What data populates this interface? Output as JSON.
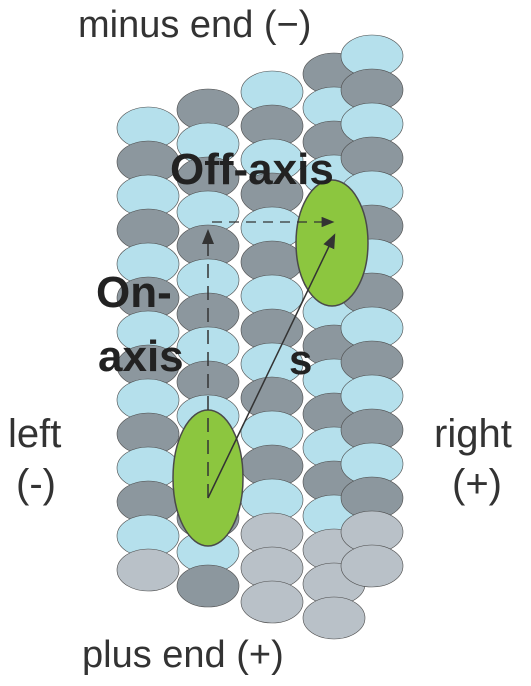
{
  "labels": {
    "top": "minus end (−)",
    "bottom": "plus end (+)",
    "left_word": "left",
    "left_sign": "(-)",
    "right_word": "right",
    "right_sign": "(+)",
    "off_axis": "Off-axis",
    "on_axis_line1": "On-",
    "on_axis_line2": "axis",
    "step": "s"
  },
  "colors": {
    "tubulin_dark": "#8c979e",
    "tubulin_light": "#b5e0ec",
    "tubulin_pale": "#b9c1c8",
    "motor_head": "#8cc63f",
    "outline": "#4a4a4a",
    "arrow": "#333333"
  }
}
